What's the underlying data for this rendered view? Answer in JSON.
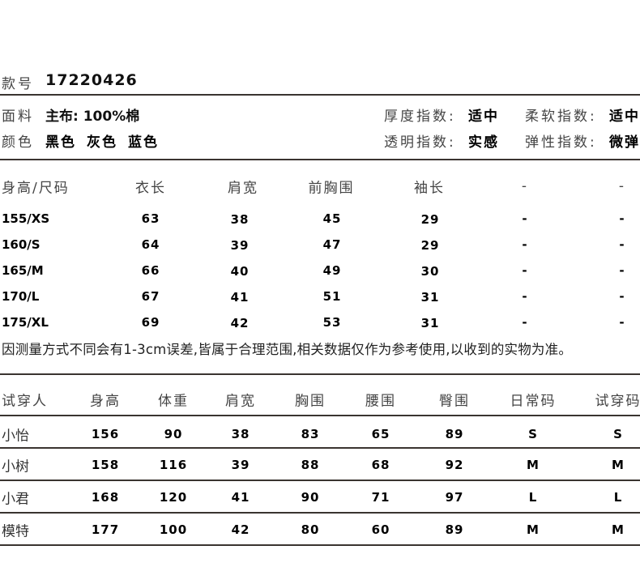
{
  "product": {
    "style_label": "款号",
    "style_no": "17220426",
    "fabric_label": "面料",
    "fabric_value": "主布: 100%棉",
    "color_label": "颜色",
    "colors": [
      "黑色",
      "灰色",
      "蓝色"
    ],
    "thickness_label": "厚度指数:",
    "thickness_value": "适中",
    "softness_label": "柔软指数:",
    "softness_value": "适中",
    "transparency_label": "透明指数:",
    "transparency_value": "实感",
    "elasticity_label": "弹性指数:",
    "elasticity_value": "微弹"
  },
  "size_table": {
    "headers": [
      "身高/尺码",
      "衣长",
      "肩宽",
      "前胸围",
      "袖长",
      "-",
      "-"
    ],
    "rows": [
      [
        "155/XS",
        "63",
        "38",
        "45",
        "29",
        "-",
        "-"
      ],
      [
        "160/S",
        "64",
        "39",
        "47",
        "29",
        "-",
        "-"
      ],
      [
        "165/M",
        "66",
        "40",
        "49",
        "30",
        "-",
        "-"
      ],
      [
        "170/L",
        "67",
        "41",
        "51",
        "31",
        "-",
        "-"
      ],
      [
        "175/XL",
        "69",
        "42",
        "53",
        "31",
        "-",
        "-"
      ]
    ]
  },
  "note": "因测量方式不同会有1-3cm误差,皆属于合理范围,相关数据仅作为参考使用,以收到的实物为准。",
  "tryon_table": {
    "headers": [
      "试穿人",
      "身高",
      "体重",
      "肩宽",
      "胸围",
      "腰围",
      "臀围",
      "日常码",
      "试穿码"
    ],
    "rows": [
      [
        "小怡",
        "156",
        "90",
        "38",
        "83",
        "65",
        "89",
        "S",
        "S"
      ],
      [
        "小树",
        "158",
        "116",
        "39",
        "88",
        "68",
        "92",
        "M",
        "M"
      ],
      [
        "小君",
        "168",
        "120",
        "41",
        "90",
        "71",
        "97",
        "L",
        "L"
      ],
      [
        "模特",
        "177",
        "100",
        "42",
        "80",
        "60",
        "89",
        "M",
        "M"
      ]
    ]
  }
}
